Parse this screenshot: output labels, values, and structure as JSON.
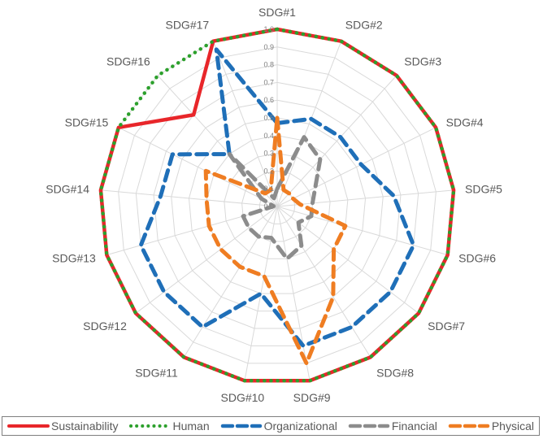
{
  "chart_data": {
    "type": "radar",
    "title": "",
    "categories": [
      "SDG#1",
      "SDG#2",
      "SDG#3",
      "SDG#4",
      "SDG#5",
      "SDG#6",
      "SDG#7",
      "SDG#8",
      "SDG#9",
      "SDG#10",
      "SDG#11",
      "SDG#12",
      "SDG#13",
      "SDG#14",
      "SDG#15",
      "SDG#16",
      "SDG#17"
    ],
    "radial_ticks": [
      "0.0",
      "0.1",
      "0.2",
      "0.3",
      "0.4",
      "0.5",
      "0.6",
      "0.7",
      "0.8",
      "0.9",
      "1.0"
    ],
    "rlim": [
      0,
      1.0
    ],
    "grid": true,
    "legend_position": "bottom",
    "series": [
      {
        "name": "Sustainability",
        "color": "#e8262a",
        "style": "solid",
        "values": [
          1.0,
          1.0,
          1.0,
          1.0,
          1.0,
          1.0,
          1.0,
          1.0,
          1.0,
          1.0,
          1.0,
          1.0,
          1.0,
          1.0,
          1.0,
          0.7,
          1.0
        ]
      },
      {
        "name": "Human",
        "color": "#2ca02c",
        "style": "dotted",
        "values": [
          1.0,
          1.0,
          1.0,
          1.0,
          1.0,
          1.0,
          1.0,
          1.0,
          1.0,
          1.0,
          1.0,
          1.0,
          1.0,
          1.0,
          1.0,
          1.0,
          1.0
        ]
      },
      {
        "name": "Organizational",
        "color": "#1f6fb8",
        "style": "dashed",
        "values": [
          0.47,
          0.53,
          0.53,
          0.53,
          0.66,
          0.8,
          0.8,
          0.8,
          0.8,
          0.5,
          0.8,
          0.8,
          0.8,
          0.66,
          0.66,
          0.4,
          0.95
        ]
      },
      {
        "name": "Financial",
        "color": "#8c8c8c",
        "style": "dashed",
        "values": [
          0.1,
          0.42,
          0.36,
          0.24,
          0.2,
          0.2,
          0.15,
          0.26,
          0.3,
          0.18,
          0.2,
          0.2,
          0.2,
          0.02,
          0.1,
          0.4,
          0.05
        ]
      },
      {
        "name": "Physical",
        "color": "#ef7d22",
        "style": "dashed",
        "values": [
          0.5,
          0.1,
          0.1,
          0.1,
          0.13,
          0.4,
          0.4,
          0.6,
          0.9,
          0.4,
          0.4,
          0.4,
          0.4,
          0.4,
          0.45,
          0.1,
          0.1
        ]
      }
    ]
  },
  "legend": {
    "items": [
      "Sustainability",
      "Human",
      "Organizational",
      "Financial",
      "Physical"
    ]
  }
}
